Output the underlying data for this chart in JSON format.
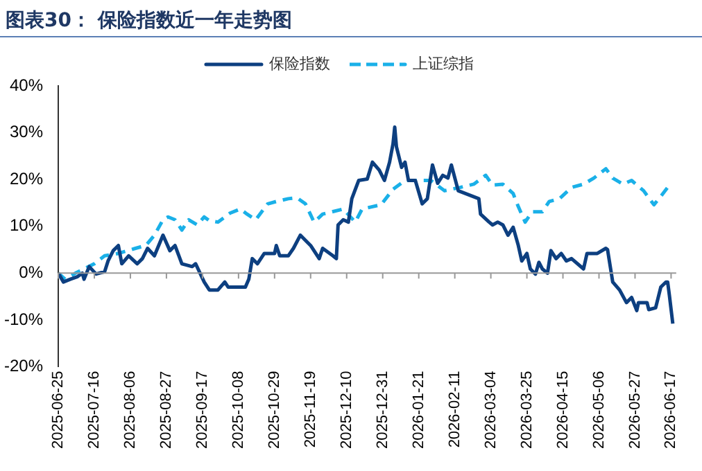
{
  "chart_data": {
    "type": "line",
    "title": "图表30： 保险指数近一年走势图",
    "xlim": [
      "2025-06-25",
      "2026-06-20"
    ],
    "xticks": [
      "2025-06-25",
      "2025-07-16",
      "2025-08-06",
      "2025-08-27",
      "2025-09-17",
      "2025-10-08",
      "2025-10-29",
      "2025-11-19",
      "2025-12-10",
      "2025-12-31",
      "2026-01-21",
      "2026-02-11",
      "2026-03-04",
      "2026-03-25",
      "2026-04-15",
      "2026-05-06",
      "2026-05-27",
      "2026-06-17"
    ],
    "ylim": [
      -20,
      40
    ],
    "yticks": [
      {
        "value": -20,
        "label": "-20%"
      },
      {
        "value": -10,
        "label": "-10%"
      },
      {
        "value": 0,
        "label": "0%"
      },
      {
        "value": 10,
        "label": "10%"
      },
      {
        "value": 20,
        "label": "20%"
      },
      {
        "value": 30,
        "label": "30%"
      },
      {
        "value": 40,
        "label": "40%"
      }
    ],
    "grid": false,
    "legend": "top",
    "ref_lines": [
      {
        "axis": "y",
        "value": 0,
        "color": "#999999"
      }
    ],
    "marker": "none",
    "series": [
      {
        "name": "保险指数",
        "color": "#0d3f80",
        "line_style": "solid",
        "x": [
          "2025-06-25",
          "2025-06-28",
          "2025-07-02",
          "2025-07-06",
          "2025-07-09",
          "2025-07-10",
          "2025-07-13",
          "2025-07-17",
          "2025-07-22",
          "2025-07-24",
          "2025-07-27",
          "2025-07-30",
          "2025-08-01",
          "2025-08-05",
          "2025-08-10",
          "2025-08-13",
          "2025-08-16",
          "2025-08-20",
          "2025-08-25",
          "2025-08-29",
          "2025-09-01",
          "2025-09-05",
          "2025-09-11",
          "2025-09-13",
          "2025-09-18",
          "2025-09-21",
          "2025-09-26",
          "2025-09-30",
          "2025-10-02",
          "2025-10-12",
          "2025-10-14",
          "2025-10-16",
          "2025-10-19",
          "2025-10-23",
          "2025-10-29",
          "2025-10-30",
          "2025-11-01",
          "2025-11-06",
          "2025-11-09",
          "2025-11-13",
          "2025-11-19",
          "2025-11-24",
          "2025-11-26",
          "2025-12-02",
          "2025-12-04",
          "2025-12-05",
          "2025-12-08",
          "2025-12-11",
          "2025-12-13",
          "2025-12-17",
          "2025-12-22",
          "2025-12-25",
          "2025-12-29",
          "2026-01-01",
          "2026-01-04",
          "2026-01-06",
          "2026-01-07",
          "2026-01-08",
          "2026-01-11",
          "2026-01-13",
          "2026-01-15",
          "2026-01-19",
          "2026-01-23",
          "2026-01-26",
          "2026-01-29",
          "2026-02-01",
          "2026-02-04",
          "2026-02-07",
          "2026-02-09",
          "2026-02-13",
          "2026-02-25",
          "2026-02-26",
          "2026-03-03",
          "2026-03-05",
          "2026-03-08",
          "2026-03-11",
          "2026-03-14",
          "2026-03-17",
          "2026-03-20",
          "2026-03-22",
          "2026-03-25",
          "2026-03-27",
          "2026-03-30",
          "2026-04-01",
          "2026-04-03",
          "2026-04-06",
          "2026-04-08",
          "2026-04-11",
          "2026-04-14",
          "2026-04-17",
          "2026-04-20",
          "2026-04-27",
          "2026-04-29",
          "2026-05-05",
          "2026-05-10",
          "2026-05-11",
          "2026-05-14",
          "2026-05-18",
          "2026-05-22",
          "2026-05-25",
          "2026-05-28",
          "2026-05-29",
          "2026-06-03",
          "2026-06-04",
          "2026-06-08",
          "2026-06-11",
          "2026-06-14",
          "2026-06-15",
          "2026-06-16",
          "2026-06-18"
        ],
        "values": [
          0,
          -1.9,
          -1.3,
          -0.8,
          0,
          -1.3,
          1.4,
          -0.2,
          0.3,
          2.6,
          4.8,
          5.9,
          2.0,
          3.7,
          2.0,
          3.1,
          5.3,
          3.7,
          8.1,
          4.8,
          5.9,
          2.0,
          1.4,
          2.0,
          -1.9,
          -3.6,
          -3.6,
          -1.9,
          -3.0,
          -3.0,
          -1.3,
          3.1,
          2.0,
          4.2,
          4.2,
          5.9,
          3.7,
          3.7,
          5.3,
          8.1,
          5.9,
          3.1,
          5.3,
          3.7,
          3.1,
          10.3,
          11.4,
          10.9,
          15.9,
          19.8,
          20.1,
          23.7,
          22.0,
          19.8,
          23.7,
          27.6,
          31.2,
          27.0,
          22.6,
          23.7,
          19.8,
          19.8,
          14.8,
          15.9,
          23.1,
          19.2,
          20.9,
          20.3,
          23.1,
          17.6,
          15.9,
          12.6,
          10.9,
          10.3,
          10.9,
          10.3,
          8.1,
          9.8,
          5.9,
          2.6,
          4.2,
          0.9,
          -0.2,
          2.3,
          0.9,
          0,
          4.8,
          3.1,
          4.2,
          2.6,
          3.1,
          0.9,
          4.2,
          4.2,
          5.3,
          5.0,
          -1.9,
          -3.6,
          -6.3,
          -5.2,
          -8.0,
          -6.3,
          -6.3,
          -7.8,
          -7.4,
          -3.0,
          -1.9,
          -1.9,
          -4.7,
          -10.8
        ]
      },
      {
        "name": "上证综指",
        "color": "#1ab0e8",
        "line_style": "dashed",
        "x": [
          "2025-06-25",
          "2025-06-29",
          "2025-07-05",
          "2025-07-10",
          "2025-07-16",
          "2025-07-22",
          "2025-07-30",
          "2025-08-09",
          "2025-08-15",
          "2025-08-20",
          "2025-08-25",
          "2025-08-28",
          "2025-09-01",
          "2025-09-05",
          "2025-09-09",
          "2025-09-14",
          "2025-09-18",
          "2025-09-21",
          "2025-09-26",
          "2025-10-03",
          "2025-10-09",
          "2025-10-13",
          "2025-10-18",
          "2025-10-25",
          "2025-10-30",
          "2025-11-06",
          "2025-11-11",
          "2025-11-16",
          "2025-11-21",
          "2025-11-26",
          "2025-12-08",
          "2025-12-15",
          "2025-12-19",
          "2025-12-30",
          "2026-01-06",
          "2026-01-13",
          "2026-01-28",
          "2026-02-05",
          "2026-02-14",
          "2026-02-22",
          "2026-03-01",
          "2026-03-05",
          "2026-03-11",
          "2026-03-17",
          "2026-03-20",
          "2026-03-24",
          "2026-03-28",
          "2026-04-03",
          "2026-04-07",
          "2026-04-13",
          "2026-04-20",
          "2026-04-27",
          "2026-05-03",
          "2026-05-10",
          "2026-05-14",
          "2026-05-20",
          "2026-05-25",
          "2026-06-01",
          "2026-06-07",
          "2026-06-11",
          "2026-06-15"
        ],
        "values": [
          0,
          -1.3,
          0,
          0.9,
          2.0,
          3.7,
          4.2,
          5.3,
          5.9,
          8.1,
          11.4,
          12.0,
          11.4,
          9.2,
          11.4,
          10.3,
          12.0,
          11.2,
          10.9,
          12.8,
          13.7,
          12.6,
          11.4,
          14.8,
          15.3,
          15.9,
          16.1,
          14.8,
          10.9,
          12.6,
          13.7,
          10.9,
          13.7,
          14.6,
          17.9,
          19.8,
          19.8,
          17.6,
          18.3,
          19.0,
          20.9,
          18.8,
          19.0,
          17.0,
          14.2,
          10.9,
          13.1,
          13.1,
          15.3,
          15.9,
          18.3,
          19.0,
          20.3,
          22.3,
          20.3,
          19.0,
          19.8,
          17.6,
          14.6,
          16.4,
          18.3
        ]
      }
    ]
  }
}
